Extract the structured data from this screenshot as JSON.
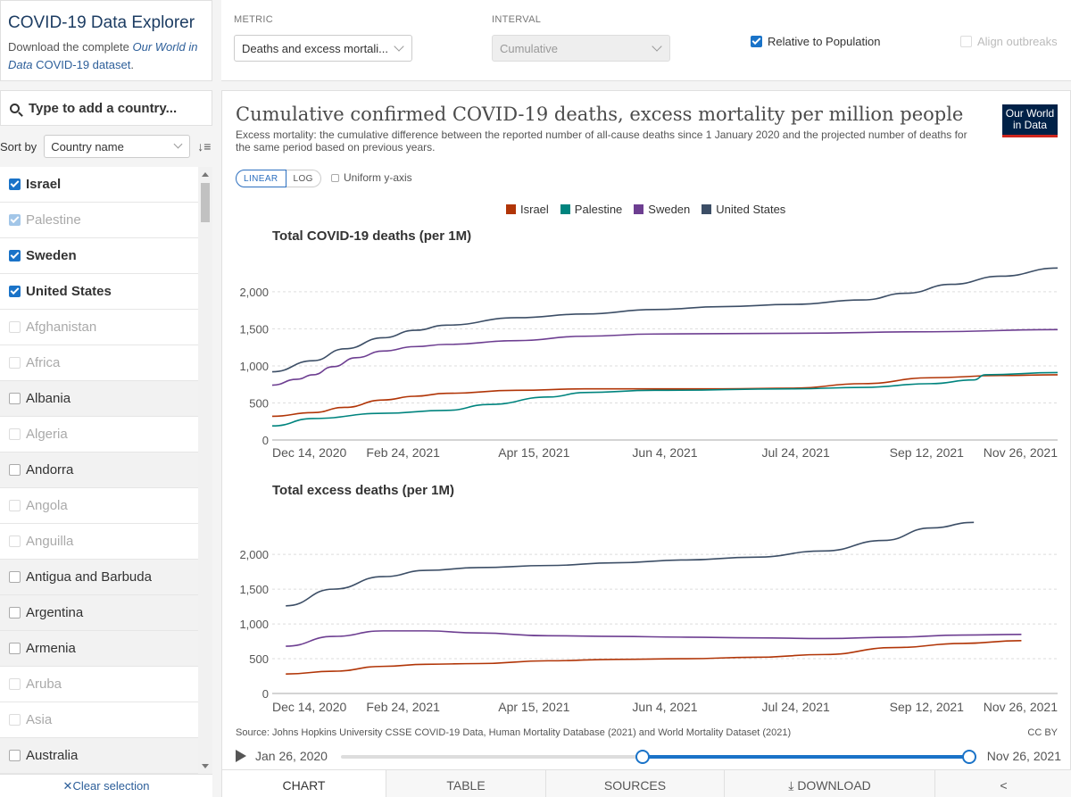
{
  "brand": {
    "title": "COVID-19 Data Explorer",
    "desc_prefix": "Download the complete",
    "desc_link_em": "Our World in Data",
    "desc_link": "COVID-19 dataset",
    "desc_suffix": "."
  },
  "controls": {
    "metric_label": "METRIC",
    "metric_value": "Deaths and excess mortali...",
    "interval_label": "INTERVAL",
    "interval_value": "Cumulative",
    "relative_label": "Relative to Population",
    "relative_checked": true,
    "align_label": "Align outbreaks",
    "align_checked": false
  },
  "sidebar": {
    "search_placeholder": "Type to add a country...",
    "sort_label": "Sort by",
    "sort_value": "Country name",
    "clear_label": "Clear selection",
    "countries": [
      {
        "name": "Israel",
        "checked": true,
        "available": true
      },
      {
        "name": "Palestine",
        "checked": true,
        "available": false
      },
      {
        "name": "Sweden",
        "checked": true,
        "available": true
      },
      {
        "name": "United States",
        "checked": true,
        "available": true
      },
      {
        "name": "Afghanistan",
        "checked": false,
        "available": false
      },
      {
        "name": "Africa",
        "checked": false,
        "available": false
      },
      {
        "name": "Albania",
        "checked": false,
        "available": true
      },
      {
        "name": "Algeria",
        "checked": false,
        "available": false
      },
      {
        "name": "Andorra",
        "checked": false,
        "available": true
      },
      {
        "name": "Angola",
        "checked": false,
        "available": false
      },
      {
        "name": "Anguilla",
        "checked": false,
        "available": false
      },
      {
        "name": "Antigua and Barbuda",
        "checked": false,
        "available": true
      },
      {
        "name": "Argentina",
        "checked": false,
        "available": true
      },
      {
        "name": "Armenia",
        "checked": false,
        "available": true
      },
      {
        "name": "Aruba",
        "checked": false,
        "available": false
      },
      {
        "name": "Asia",
        "checked": false,
        "available": false
      },
      {
        "name": "Australia",
        "checked": false,
        "available": true
      }
    ]
  },
  "chart": {
    "title": "Cumulative confirmed COVID-19 deaths, excess mortality per million people",
    "subtitle": "Excess mortality: the cumulative difference between the reported number of all-cause deaths since 1 January 2020 and the projected number of deaths for the same period based on previous years.",
    "logo_line1": "Our World",
    "logo_line2": "in Data",
    "linear_label": "LINEAR",
    "log_label": "LOG",
    "uniform_label": "Uniform y-axis",
    "source": "Source: Johns Hopkins University CSSE COVID-19 Data, Human Mortality Database (2021) and World Mortality Dataset (2021)",
    "license": "CC BY"
  },
  "timeline": {
    "start": "Jan 26, 2020",
    "end": "Nov 26, 2021",
    "range_start_fraction": 0.48,
    "range_end_fraction": 1.0
  },
  "tabs": [
    "Chart",
    "Table",
    "Sources",
    "Download"
  ],
  "colors": {
    "Israel": "#b13507",
    "Palestine": "#00847e",
    "Sweden": "#6d3e91",
    "United States": "#3c4e66",
    "accent": "#1a73c8"
  },
  "chart_data": [
    {
      "type": "line",
      "title": "Total COVID-19 deaths (per 1M)",
      "x_ticks": [
        "Dec 14, 2020",
        "Feb 24, 2021",
        "Apr 15, 2021",
        "Jun 4, 2021",
        "Jul 24, 2021",
        "Sep 12, 2021",
        "Nov 26, 2021"
      ],
      "y_ticks": [
        0,
        500,
        1000,
        1500,
        2000
      ],
      "ylim": [
        0,
        2300
      ],
      "xlim": [
        "2020-12-14",
        "2021-11-26"
      ],
      "series": [
        {
          "name": "United States",
          "x": [
            "2020-12-14",
            "2021-01-01",
            "2021-01-15",
            "2021-02-01",
            "2021-02-15",
            "2021-03-01",
            "2021-04-01",
            "2021-05-01",
            "2021-06-01",
            "2021-07-01",
            "2021-08-01",
            "2021-09-01",
            "2021-09-20",
            "2021-10-10",
            "2021-11-01",
            "2021-11-26"
          ],
          "values": [
            920,
            1070,
            1230,
            1380,
            1480,
            1550,
            1650,
            1700,
            1760,
            1800,
            1830,
            1890,
            1980,
            2100,
            2210,
            2320
          ]
        },
        {
          "name": "Sweden",
          "x": [
            "2020-12-14",
            "2020-12-25",
            "2021-01-01",
            "2021-01-10",
            "2021-01-20",
            "2021-02-01",
            "2021-02-15",
            "2021-03-01",
            "2021-04-01",
            "2021-05-01",
            "2021-06-01",
            "2021-08-01",
            "2021-10-01",
            "2021-11-26"
          ],
          "values": [
            740,
            820,
            880,
            990,
            1110,
            1200,
            1260,
            1290,
            1340,
            1400,
            1430,
            1440,
            1460,
            1490
          ]
        },
        {
          "name": "Israel",
          "x": [
            "2020-12-14",
            "2021-01-01",
            "2021-01-15",
            "2021-02-01",
            "2021-02-15",
            "2021-03-01",
            "2021-04-01",
            "2021-05-01",
            "2021-06-01",
            "2021-07-01",
            "2021-08-01",
            "2021-09-01",
            "2021-10-01",
            "2021-11-01",
            "2021-11-26"
          ],
          "values": [
            320,
            370,
            440,
            540,
            590,
            630,
            670,
            690,
            690,
            690,
            700,
            760,
            840,
            870,
            880
          ]
        },
        {
          "name": "Palestine",
          "x": [
            "2020-12-14",
            "2021-01-01",
            "2021-02-01",
            "2021-03-01",
            "2021-03-20",
            "2021-04-15",
            "2021-05-01",
            "2021-06-01",
            "2021-08-01",
            "2021-09-01",
            "2021-10-01",
            "2021-10-20",
            "2021-10-25",
            "2021-11-26"
          ],
          "values": [
            190,
            290,
            360,
            400,
            480,
            580,
            640,
            670,
            690,
            710,
            760,
            810,
            880,
            910
          ]
        }
      ]
    },
    {
      "type": "line",
      "title": "Total excess deaths (per 1M)",
      "x_ticks": [
        "Dec 14, 2020",
        "Feb 24, 2021",
        "Apr 15, 2021",
        "Jun 4, 2021",
        "Jul 24, 2021",
        "Sep 12, 2021",
        "Nov 26, 2021"
      ],
      "y_ticks": [
        0,
        500,
        1000,
        1500,
        2000
      ],
      "ylim": [
        0,
        2400
      ],
      "xlim": [
        "2020-12-14",
        "2021-11-26"
      ],
      "series": [
        {
          "name": "United States",
          "x": [
            "2020-12-20",
            "2021-01-10",
            "2021-02-01",
            "2021-02-20",
            "2021-03-15",
            "2021-04-15",
            "2021-05-15",
            "2021-06-15",
            "2021-07-15",
            "2021-08-15",
            "2021-09-10",
            "2021-10-01",
            "2021-10-20"
          ],
          "values": [
            1260,
            1500,
            1680,
            1770,
            1810,
            1840,
            1880,
            1920,
            1960,
            2050,
            2200,
            2380,
            2460
          ]
        },
        {
          "name": "Sweden",
          "x": [
            "2020-12-20",
            "2021-01-10",
            "2021-02-01",
            "2021-02-20",
            "2021-03-15",
            "2021-04-15",
            "2021-05-15",
            "2021-06-15",
            "2021-07-15",
            "2021-08-15",
            "2021-09-15",
            "2021-10-15",
            "2021-11-10"
          ],
          "values": [
            680,
            820,
            900,
            900,
            870,
            830,
            820,
            810,
            800,
            790,
            810,
            840,
            850
          ]
        },
        {
          "name": "Israel",
          "x": [
            "2020-12-20",
            "2021-01-10",
            "2021-02-01",
            "2021-02-20",
            "2021-03-15",
            "2021-04-15",
            "2021-05-15",
            "2021-06-15",
            "2021-07-15",
            "2021-08-15",
            "2021-09-15",
            "2021-10-15",
            "2021-11-10"
          ],
          "values": [
            280,
            320,
            390,
            420,
            430,
            470,
            490,
            500,
            520,
            560,
            660,
            720,
            760
          ]
        }
      ]
    }
  ]
}
